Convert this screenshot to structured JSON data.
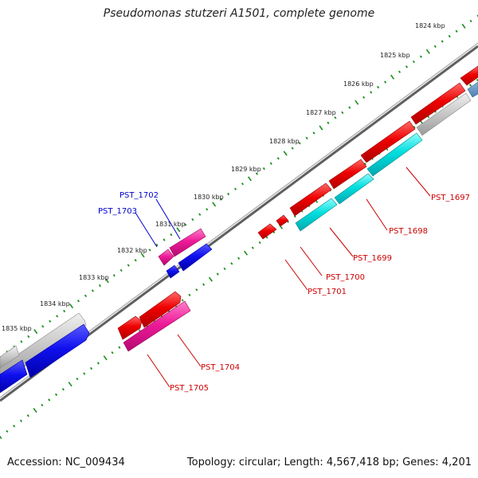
{
  "title": "Pseudomonas stutzeri A1501, complete genome",
  "footer": {
    "accession": "Accession: NC_009434",
    "info": "Topology: circular; Length: 4,567,418 bp; Genes: 4,201"
  },
  "colors": {
    "backbone": "#7a7a7a",
    "ruler": "#1a8f1a",
    "red": "#ee0000",
    "blue": "#1010ee",
    "cyan": "#00dddd",
    "magenta": "#ee1a99",
    "gray": "#c8c8c8",
    "label_red": "#cc0000",
    "label_blue": "#0000cc"
  },
  "ruler_labels": [
    "1824 kbp",
    "1825 kbp",
    "1826 kbp",
    "1827 kbp",
    "1828 kbp",
    "1829 kbp",
    "1830 kbp",
    "1831 kbp",
    "1832 kbp",
    "1833 kbp",
    "1834 kbp",
    "1835 kbp"
  ],
  "gene_labels": [
    "PST_1697",
    "PST_1698",
    "PST_1699",
    "PST_1700",
    "PST_1701",
    "PST_1702",
    "PST_1703",
    "PST_1704",
    "PST_1705"
  ]
}
